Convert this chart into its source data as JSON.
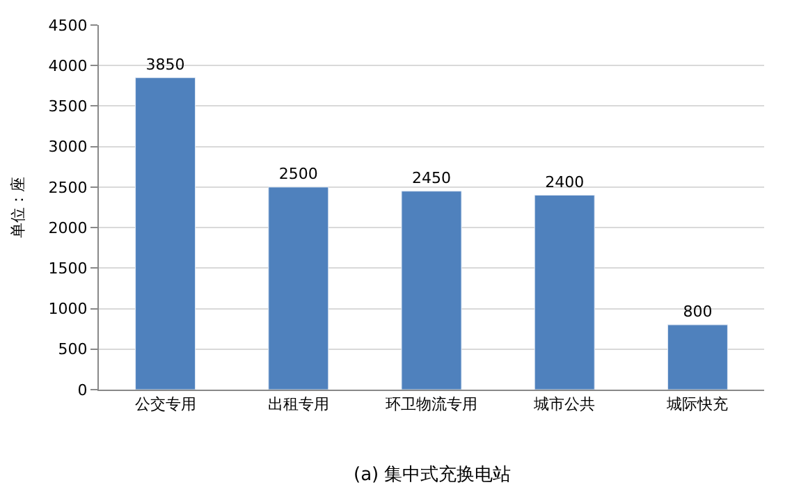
{
  "chart_data": {
    "type": "bar",
    "categories": [
      "公交专用",
      "出租专用",
      "环卫物流专用",
      "城市公共",
      "城际快充"
    ],
    "values": [
      3850,
      2500,
      2450,
      2400,
      800
    ],
    "color": "#4f81bd",
    "ylabel": "单位：座",
    "ylim": [
      0,
      4500
    ],
    "yticks": [
      0,
      500,
      1000,
      1500,
      2000,
      2500,
      3000,
      3500,
      4000,
      4500
    ],
    "grid": "y",
    "data_labels": true,
    "annotations": [
      "(a) 集中式充换电站"
    ]
  }
}
